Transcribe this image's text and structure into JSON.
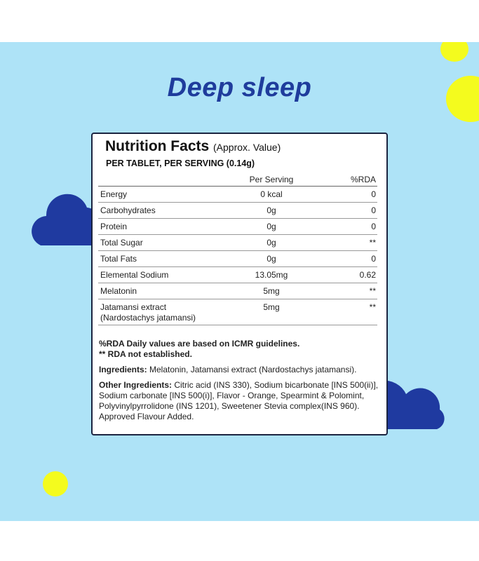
{
  "title": "Deep sleep",
  "colors": {
    "background": "#aee3f7",
    "title": "#1f3c9c",
    "cloud": "#1f3aa0",
    "moon": "#f6eeaa",
    "dot": "#f4fb1e"
  },
  "panel": {
    "heading": "Nutrition Facts",
    "heading_note": "(Approx. Value)",
    "serving": "PER TABLET, PER SERVING (0.14g)",
    "columns": [
      "",
      "Per Serving",
      "%RDA"
    ],
    "rows": [
      {
        "name": "Energy",
        "value": "0 kcal",
        "rda": "0"
      },
      {
        "name": "Carbohydrates",
        "value": "0g",
        "rda": "0"
      },
      {
        "name": "Protein",
        "value": "0g",
        "rda": "0"
      },
      {
        "name": "Total Sugar",
        "value": "0g",
        "rda": "**"
      },
      {
        "name": "Total Fats",
        "value": "0g",
        "rda": "0"
      },
      {
        "name": "Elemental Sodium",
        "value": "13.05mg",
        "rda": "0.62"
      },
      {
        "name": "Melatonin",
        "value": "5mg",
        "rda": "**"
      },
      {
        "name": "Jatamansi extract",
        "name2": "(Nardostachys jatamansi)",
        "value": "5mg",
        "rda": "**"
      }
    ],
    "note1": "%RDA Daily values are based on ICMR guidelines.",
    "note2": "** RDA not established.",
    "ingredients_label": "Ingredients:",
    "ingredients": " Melatonin, Jatamansi extract (Nardostachys jatamansi).",
    "other_label": "Other Ingredients:",
    "other": "  Citric acid (INS 330), Sodium bicarbonate [INS 500(ii)], Sodium carbonate [INS 500(i)], Flavor - Orange, Spearmint & Polomint, Polyvinylpyrrolidone (INS 1201), Sweetener Stevia complex(INS 960). Approved Flavour Added."
  }
}
